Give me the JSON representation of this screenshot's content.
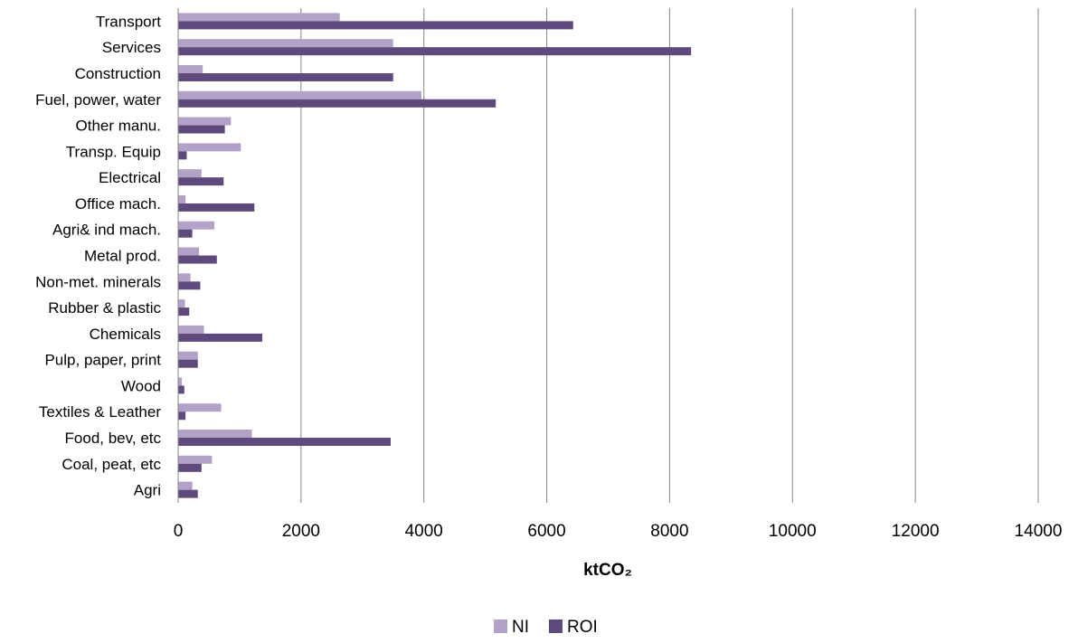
{
  "chart_data": {
    "type": "bar",
    "orientation": "horizontal",
    "title": "",
    "xlabel": "ktCO₂",
    "ylabel": "",
    "xlim": [
      0,
      14000
    ],
    "xticks": [
      0,
      2000,
      4000,
      6000,
      8000,
      10000,
      12000,
      14000
    ],
    "grid": "vertical",
    "legend_position": "bottom",
    "categories": [
      "Transport",
      "Services",
      "Construction",
      "Fuel, power, water",
      "Other manu.",
      "Transp. Equip",
      "Electrical",
      "Office mach.",
      "Agri& ind mach.",
      "Metal prod.",
      "Non-met. minerals",
      "Rubber & plastic",
      "Chemicals",
      "Pulp, paper, print",
      "Wood",
      "Textiles & Leather",
      "Food, bev, etc",
      "Coal, peat, etc",
      "Agri"
    ],
    "series": [
      {
        "name": "NI",
        "color": "#b3a2c7",
        "values": [
          2630,
          3500,
          400,
          3960,
          860,
          1020,
          380,
          120,
          590,
          340,
          200,
          110,
          420,
          320,
          60,
          700,
          1200,
          550,
          230
        ]
      },
      {
        "name": "ROI",
        "color": "#5f4a7e",
        "values": [
          6430,
          8350,
          3500,
          5170,
          760,
          140,
          740,
          1240,
          230,
          630,
          360,
          180,
          1370,
          320,
          100,
          120,
          3460,
          380,
          320
        ]
      }
    ]
  }
}
